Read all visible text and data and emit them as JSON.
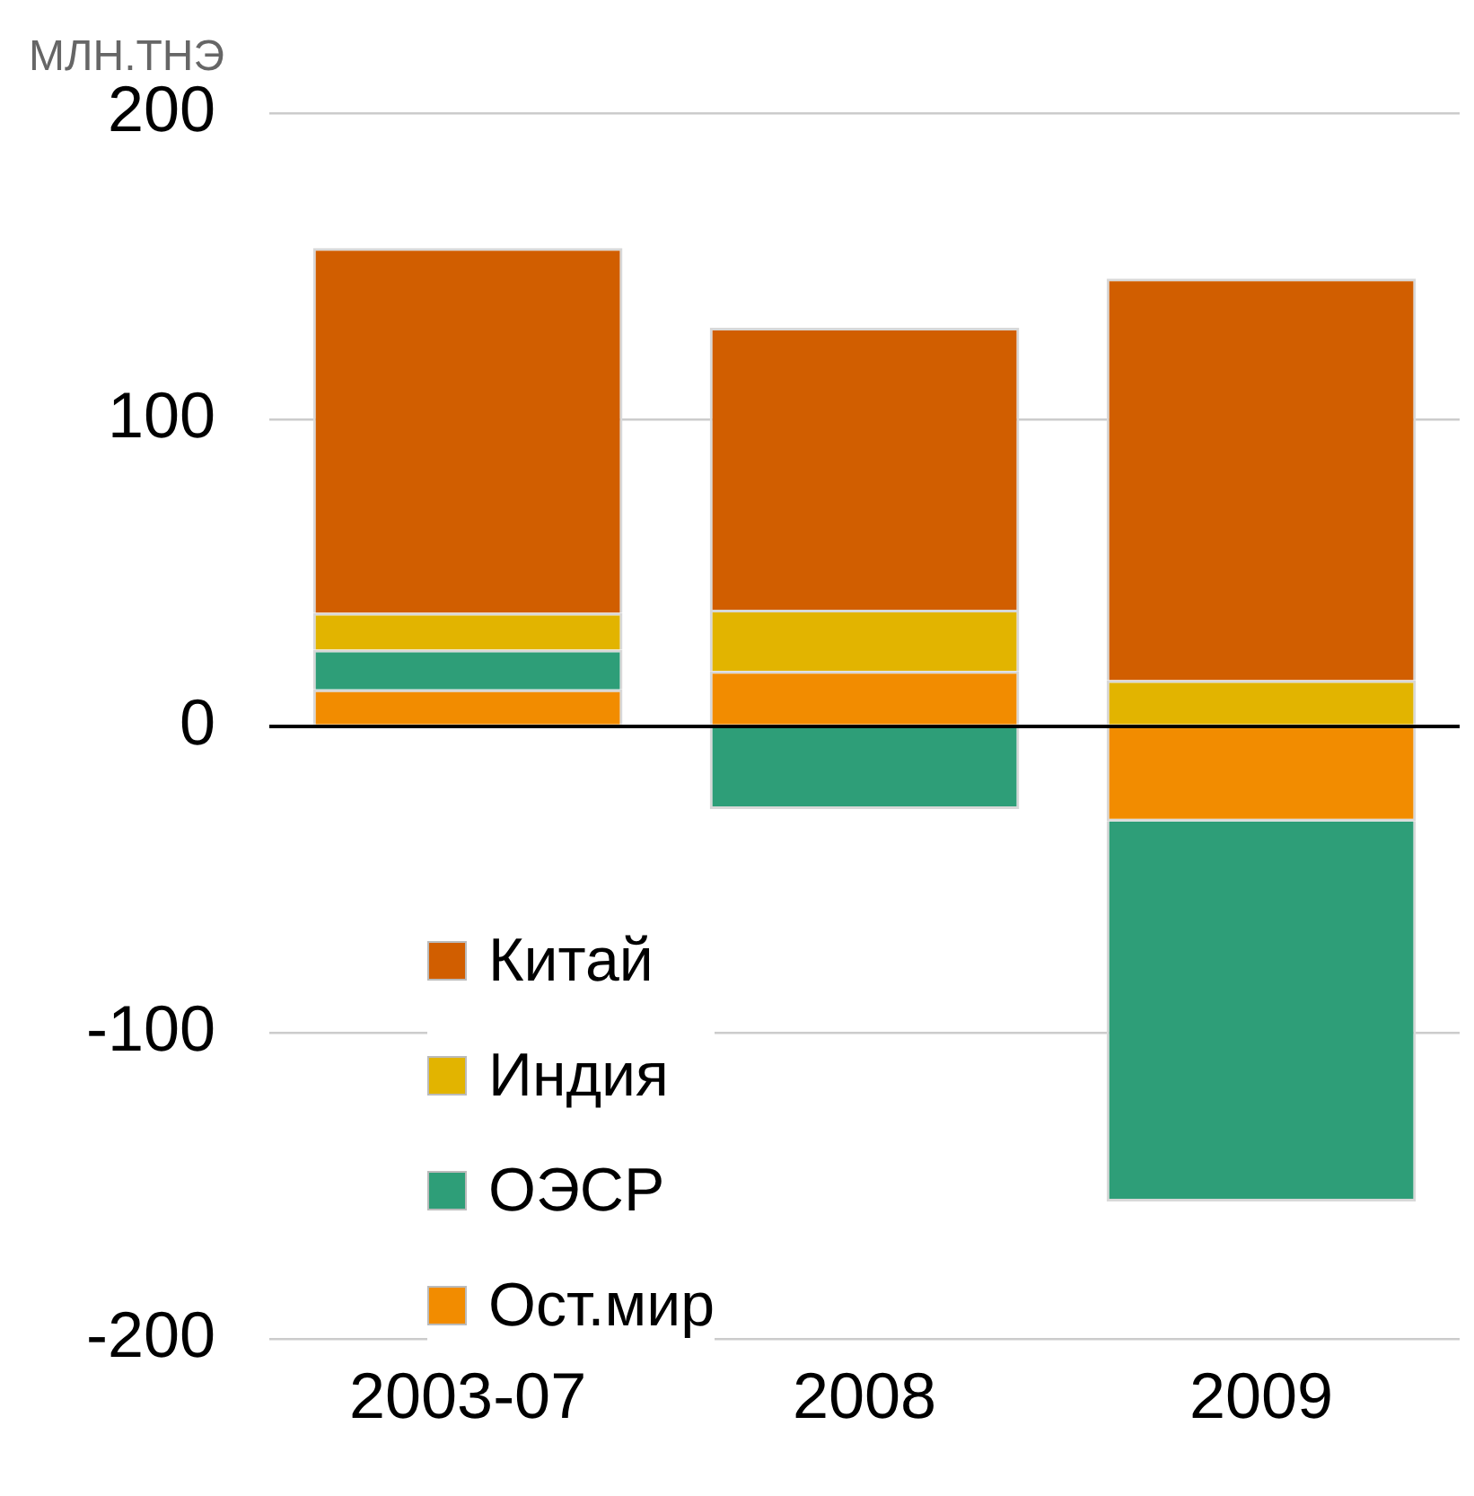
{
  "chart_data": {
    "type": "bar",
    "stacked": true,
    "ylabel": "МЛН.ТНЭ",
    "categories": [
      "2003-07",
      "2008",
      "2009"
    ],
    "series": [
      {
        "name": "Ост.мир",
        "color": "#f28c00",
        "values": [
          12,
          18,
          -31
        ]
      },
      {
        "name": "ОЭСР",
        "color": "#2e9e78",
        "values": [
          13,
          -27,
          -124
        ]
      },
      {
        "name": "Индия",
        "color": "#e2b400",
        "values": [
          12,
          20,
          15
        ]
      },
      {
        "name": "Китай",
        "color": "#d15e00",
        "values": [
          119,
          92,
          131
        ]
      }
    ],
    "ylim": [
      -200,
      200
    ],
    "yticks": [
      -200,
      -100,
      0,
      100,
      200
    ],
    "grid": "y",
    "legend": "bottom left"
  }
}
